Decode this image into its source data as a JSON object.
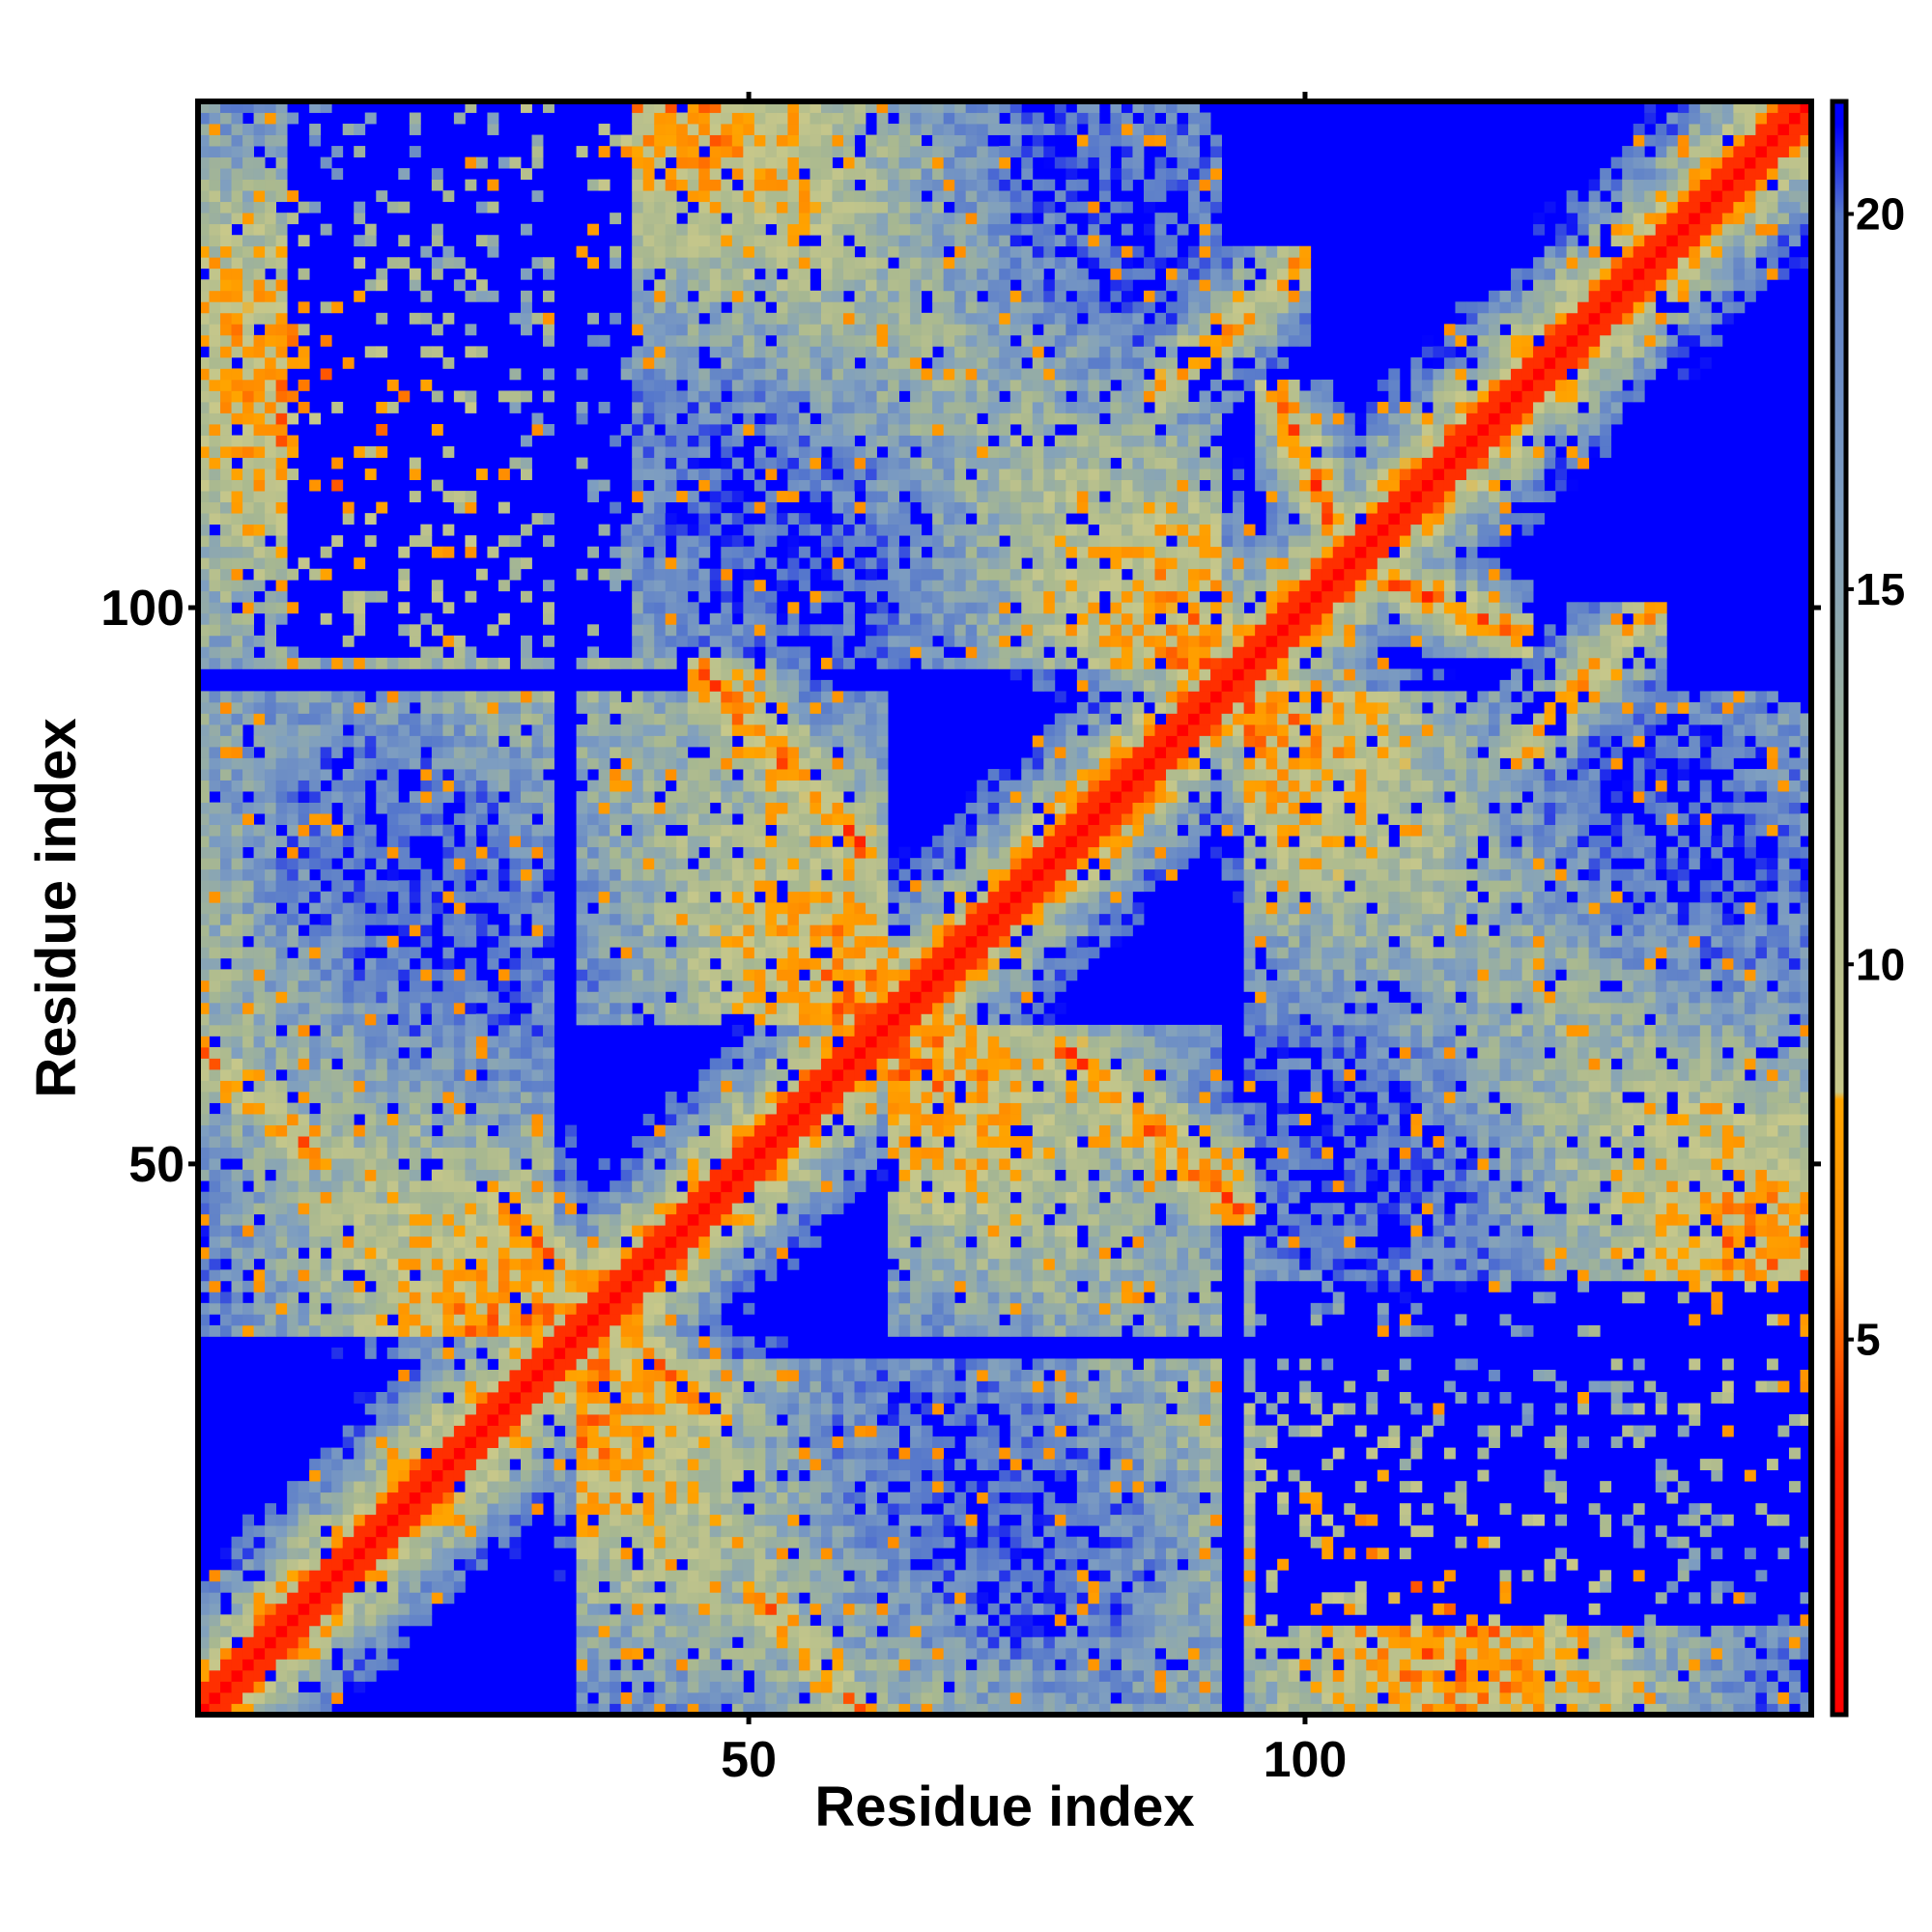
{
  "chart_data": {
    "type": "heatmap",
    "title": "",
    "xlabel": "Residue index",
    "ylabel": "Residue index",
    "n_residues": 145,
    "xlim": [
      0.5,
      145.5
    ],
    "ylim": [
      0.5,
      145.5
    ],
    "x_ticks": [
      50,
      100
    ],
    "y_ticks": [
      50,
      100
    ],
    "x_tick_labels": [
      "50",
      "100"
    ],
    "y_tick_labels": [
      "50",
      "100"
    ],
    "value_description": "pairwise residue distance (approx.); values above ~21 shown in blue",
    "colorbar": {
      "range": [
        0,
        21.5
      ],
      "ticks": [
        5,
        10,
        15,
        20
      ],
      "tick_labels": [
        "5",
        "10",
        "15",
        "20"
      ],
      "stops": [
        {
          "value": 0,
          "color": "#ff0000"
        },
        {
          "value": 3.5,
          "color": "#ff2200"
        },
        {
          "value": 6,
          "color": "#ff8c00"
        },
        {
          "value": 8.2,
          "color": "#ffa500"
        },
        {
          "value": 8.3,
          "color": "#c8c88a"
        },
        {
          "value": 12,
          "color": "#a8b890"
        },
        {
          "value": 16,
          "color": "#7f9fc0"
        },
        {
          "value": 20,
          "color": "#5577cc"
        },
        {
          "value": 21.2,
          "color": "#0000ff"
        }
      ],
      "saturated_color": "#0000ff"
    },
    "diagonal_value": 3.8,
    "helix_segments_approx": [
      [
        1,
        32
      ],
      [
        35,
        62
      ],
      [
        63,
        92
      ],
      [
        95,
        145
      ]
    ],
    "contact_features_approx": [
      {
        "kind": "antiparallel",
        "seg_a": [
          28,
          36
        ],
        "seg_b": [
          38,
          46
        ],
        "distance": 5.5
      },
      {
        "kind": "antiparallel",
        "seg_a": [
          47,
          59
        ],
        "seg_b": [
          80,
          93
        ],
        "distance": 6.5
      },
      {
        "kind": "antiparallel",
        "seg_a": [
          104,
          118
        ],
        "seg_b": [
          98,
          104
        ],
        "distance": 6.0
      },
      {
        "kind": "antiparallel",
        "seg_a": [
          1,
          10
        ],
        "seg_b": [
          52,
          60
        ],
        "distance": 7.0
      },
      {
        "kind": "parallel",
        "seg_a": [
          88,
          98
        ],
        "seg_b": [
          120,
          130
        ],
        "distance": 7.5
      }
    ]
  }
}
